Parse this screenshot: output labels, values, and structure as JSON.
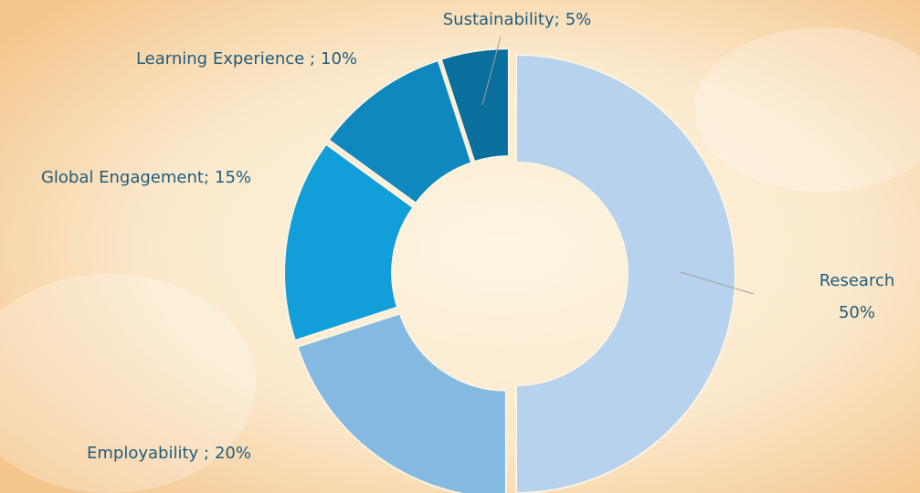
{
  "chart_data": {
    "type": "donut",
    "categories": [
      "Research",
      "Employability ;",
      "Global Engagement;",
      "Learning Experience ;",
      "Sustainability;"
    ],
    "values": [
      50,
      20,
      15,
      10,
      5
    ],
    "value_labels": [
      "50%",
      "20%",
      "15%",
      "10%",
      "5%"
    ],
    "colors": [
      "#b7d2ec",
      "#84b9e1",
      "#129fd9",
      "#0f88c0",
      "#0a6f9c"
    ]
  }
}
